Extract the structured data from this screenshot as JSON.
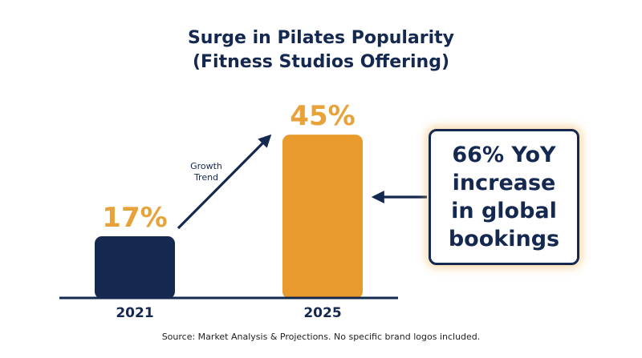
{
  "colors": {
    "navy": "#142850",
    "orange": "#E89B2C",
    "label_orange": "#E8A23A"
  },
  "chart_data": {
    "type": "bar",
    "title": "Surge in Pilates Popularity",
    "subtitle": "(Fitness Studios Offering)",
    "categories": [
      "2021",
      "2025"
    ],
    "values": [
      17,
      45
    ],
    "value_labels": [
      "17%",
      "45%"
    ],
    "unit": "%",
    "annotations": {
      "trend": [
        "Growth",
        "Trend"
      ],
      "callout": "66% YoY increase in global bookings"
    },
    "grid": false,
    "legend": "none"
  },
  "footer": {
    "source": "Source: Market Analysis & Projections. No specific brand logos included."
  }
}
